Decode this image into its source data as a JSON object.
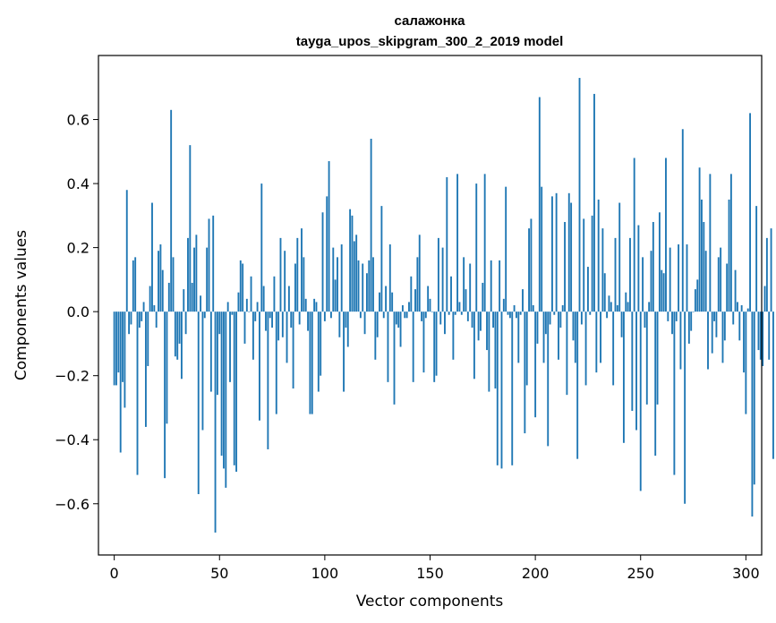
{
  "chart_data": {
    "type": "bar",
    "title": "салажонка",
    "subtitle": "tayga_upos_skipgram_300_2_2019 model",
    "xlabel": "Vector components",
    "ylabel": "Components values",
    "xlim": [
      -7.5,
      307.5
    ],
    "ylim": [
      -0.76,
      0.8
    ],
    "xticks": [
      0,
      50,
      100,
      150,
      200,
      250,
      300
    ],
    "xtick_labels": [
      "0",
      "50",
      "100",
      "150",
      "200",
      "250",
      "300"
    ],
    "yticks": [
      -0.6,
      -0.4,
      -0.2,
      0.0,
      0.2,
      0.4,
      0.6
    ],
    "ytick_labels": [
      "−0.6",
      "−0.4",
      "−0.2",
      "0.0",
      "0.2",
      "0.4",
      "0.6"
    ],
    "grid": false,
    "bar_color": "#1f77b4",
    "x_start": 0,
    "values": [
      -0.23,
      -0.23,
      -0.19,
      -0.44,
      -0.22,
      -0.3,
      0.38,
      -0.07,
      -0.04,
      0.16,
      0.17,
      -0.51,
      -0.05,
      -0.03,
      0.03,
      -0.36,
      -0.17,
      0.08,
      0.34,
      0.02,
      -0.05,
      0.19,
      0.21,
      0.13,
      -0.52,
      -0.35,
      0.09,
      0.63,
      0.17,
      -0.14,
      -0.15,
      -0.1,
      -0.21,
      0.07,
      -0.07,
      0.23,
      0.52,
      0.09,
      0.2,
      0.24,
      -0.57,
      0.05,
      -0.37,
      -0.02,
      0.2,
      0.29,
      -0.25,
      0.3,
      -0.69,
      -0.26,
      -0.07,
      -0.45,
      -0.49,
      -0.55,
      0.03,
      -0.22,
      -0.01,
      -0.48,
      -0.5,
      0.06,
      0.16,
      0.15,
      -0.1,
      0.04,
      0.0,
      0.11,
      -0.15,
      -0.03,
      0.03,
      -0.34,
      0.4,
      0.08,
      -0.06,
      -0.43,
      -0.02,
      -0.05,
      0.11,
      -0.32,
      -0.09,
      0.23,
      -0.08,
      0.19,
      -0.16,
      0.08,
      -0.05,
      -0.24,
      0.15,
      0.23,
      -0.04,
      0.26,
      0.17,
      0.04,
      -0.06,
      -0.32,
      -0.32,
      0.04,
      0.03,
      -0.25,
      -0.2,
      0.31,
      -0.03,
      0.36,
      0.47,
      -0.02,
      0.2,
      0.1,
      0.17,
      -0.08,
      0.21,
      -0.25,
      -0.05,
      -0.11,
      0.32,
      0.3,
      0.22,
      0.24,
      0.16,
      -0.02,
      0.15,
      -0.07,
      0.12,
      0.16,
      0.54,
      0.17,
      -0.15,
      -0.08,
      0.06,
      0.33,
      -0.02,
      0.08,
      -0.22,
      0.21,
      0.06,
      -0.29,
      -0.04,
      -0.05,
      -0.11,
      0.02,
      -0.02,
      -0.02,
      0.03,
      0.11,
      -0.22,
      0.07,
      0.17,
      0.24,
      -0.03,
      -0.19,
      -0.02,
      0.08,
      0.04,
      0.0,
      -0.22,
      -0.2,
      0.23,
      -0.04,
      0.2,
      -0.07,
      0.42,
      -0.01,
      0.11,
      -0.15,
      -0.01,
      0.43,
      0.03,
      -0.01,
      0.17,
      0.07,
      -0.03,
      0.15,
      -0.05,
      -0.21,
      0.4,
      -0.09,
      -0.06,
      0.09,
      0.43,
      -0.12,
      -0.25,
      0.16,
      -0.05,
      -0.24,
      -0.48,
      0.16,
      -0.49,
      0.04,
      0.39,
      -0.01,
      -0.02,
      -0.48,
      0.02,
      -0.02,
      -0.16,
      -0.01,
      0.07,
      -0.38,
      -0.23,
      0.26,
      0.29,
      0.02,
      -0.33,
      -0.1,
      0.67,
      0.39,
      -0.16,
      -0.07,
      -0.42,
      -0.04,
      0.36,
      -0.01,
      0.37,
      -0.15,
      -0.05,
      0.02,
      0.28,
      -0.26,
      0.37,
      0.34,
      -0.09,
      -0.16,
      -0.46,
      0.73,
      -0.04,
      0.29,
      -0.23,
      0.14,
      -0.01,
      0.3,
      0.68,
      -0.19,
      0.35,
      -0.16,
      0.26,
      0.12,
      -0.02,
      0.05,
      0.03,
      -0.23,
      0.23,
      0.02,
      0.34,
      -0.08,
      -0.41,
      0.06,
      0.03,
      0.23,
      -0.31,
      0.48,
      -0.37,
      0.27,
      -0.56,
      0.17,
      -0.05,
      -0.29,
      0.03,
      0.19,
      0.28,
      -0.45,
      -0.29,
      0.31,
      0.13,
      0.12,
      0.48,
      -0.03,
      0.2,
      -0.07,
      -0.51,
      -0.03,
      0.21,
      -0.18,
      0.57,
      -0.6,
      0.21,
      -0.1,
      -0.06,
      0.0,
      0.07,
      0.1,
      0.45,
      0.35,
      0.28,
      0.19,
      -0.18,
      0.43,
      -0.13,
      -0.03,
      -0.08,
      0.17,
      0.2,
      -0.16,
      -0.09,
      0.15,
      0.35,
      0.43,
      -0.04,
      0.13,
      0.03,
      -0.09,
      0.02,
      -0.19,
      -0.32,
      0.01,
      0.62,
      -0.64,
      -0.54,
      0.33,
      -0.12,
      -0.15,
      -0.17,
      0.08,
      0.23,
      -0.15,
      0.26,
      -0.46
    ]
  }
}
